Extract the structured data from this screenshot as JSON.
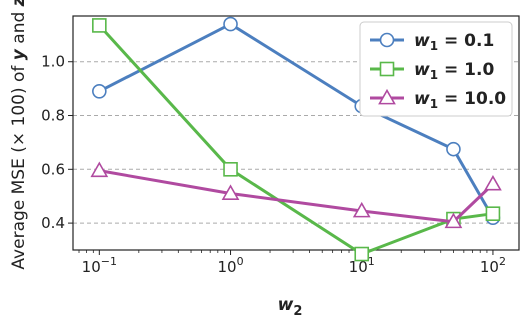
{
  "chart_data": {
    "type": "line",
    "xscale": "log",
    "x": [
      0.1,
      1,
      10,
      50,
      100
    ],
    "xticks": [
      0.1,
      1,
      10,
      100
    ],
    "xtick_labels": [
      {
        "base": "10",
        "exp": "−1"
      },
      {
        "base": "10",
        "exp": "0"
      },
      {
        "base": "10",
        "exp": "1"
      },
      {
        "base": "10",
        "exp": "2"
      }
    ],
    "xlim": [
      0.063,
      158
    ],
    "ylim": [
      0.3,
      1.17
    ],
    "yticks": [
      0.4,
      0.6,
      0.8,
      1.0
    ],
    "ytick_labels": [
      "0.4",
      "0.6",
      "0.8",
      "1.0"
    ],
    "grid": "horizontal-dashed",
    "xlabel_base": "w",
    "xlabel_sub": "2",
    "ylabel_main": "Average MSE (× 100) of ",
    "ylabel_y": "y",
    "ylabel_and": " and ",
    "ylabel_z": "z",
    "legend_position": "top-right",
    "series": [
      {
        "name_base": "w",
        "name_sub": "1",
        "name_rest": " = 0.1",
        "color": "#4c7fbf",
        "marker": "circle",
        "values": [
          0.89,
          1.14,
          0.835,
          0.675,
          0.42
        ]
      },
      {
        "name_base": "w",
        "name_sub": "1",
        "name_rest": " = 1.0",
        "color": "#59b84a",
        "marker": "square",
        "values": [
          1.135,
          0.6,
          0.285,
          0.415,
          0.435
        ]
      },
      {
        "name_base": "w",
        "name_sub": "1",
        "name_rest": " = 10.0",
        "color": "#b04aa0",
        "marker": "triangle",
        "values": [
          0.595,
          0.51,
          0.445,
          0.405,
          0.545
        ]
      }
    ]
  }
}
